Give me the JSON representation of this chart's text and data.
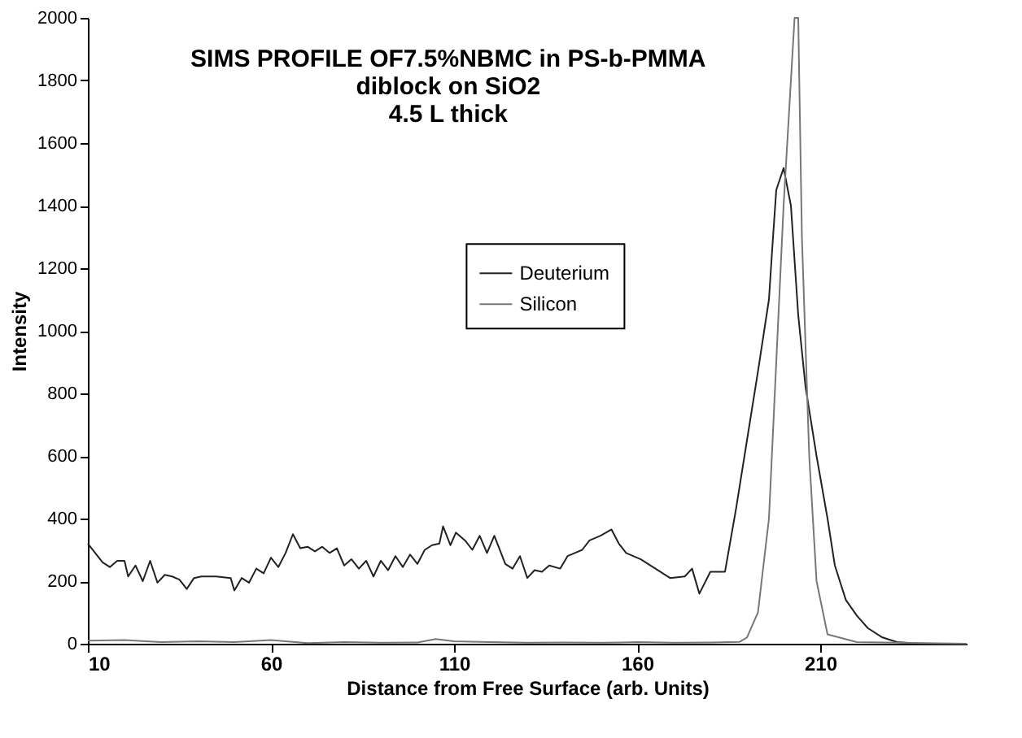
{
  "chart_data": {
    "type": "line",
    "title": "SIMS PROFILE OF7.5%NBMC in PS-b-PMMA\ndiblock on SiO2\n4.5 L thick",
    "xlabel": "Distance from Free Surface (arb. Units)",
    "ylabel": "Intensity",
    "xlim": [
      10,
      250
    ],
    "xticks": [
      10,
      60,
      110,
      160,
      210
    ],
    "ylim": [
      0,
      2000
    ],
    "yticks": [
      0,
      200,
      400,
      600,
      800,
      1000,
      1200,
      1400,
      1600,
      1800,
      2000
    ],
    "grid": false,
    "legend": "center",
    "line_style": "solid",
    "series": [
      {
        "name": "Deuterium",
        "color": "#222222",
        "x": [
          10,
          12,
          14,
          16,
          18,
          20,
          21,
          23,
          25,
          27,
          29,
          31,
          33,
          35,
          37,
          39,
          41,
          45,
          49,
          50,
          52,
          54,
          56,
          58,
          60,
          62,
          64,
          66,
          68,
          70,
          72,
          74,
          76,
          78,
          80,
          82,
          84,
          86,
          88,
          90,
          92,
          94,
          96,
          98,
          100,
          102,
          104,
          106,
          107,
          109,
          110.5,
          113,
          115,
          117,
          119,
          121,
          124,
          126,
          128,
          130,
          132,
          134,
          136,
          139,
          141,
          143,
          145,
          147,
          150,
          153,
          155,
          157,
          161,
          165,
          169,
          173,
          175,
          177,
          180,
          184,
          187,
          190,
          193,
          196,
          197,
          198,
          200,
          202,
          204,
          206,
          209,
          212,
          214,
          217,
          220,
          223,
          227,
          231,
          237,
          250
        ],
        "values": [
          320,
          290,
          260,
          245,
          265,
          265,
          215,
          250,
          200,
          265,
          195,
          220,
          215,
          205,
          175,
          210,
          215,
          215,
          210,
          170,
          210,
          195,
          240,
          225,
          275,
          245,
          290,
          350,
          305,
          310,
          295,
          310,
          290,
          305,
          250,
          270,
          240,
          265,
          215,
          265,
          235,
          280,
          245,
          285,
          255,
          300,
          315,
          320,
          375,
          315,
          355,
          330,
          300,
          345,
          290,
          345,
          255,
          240,
          280,
          210,
          235,
          230,
          250,
          240,
          280,
          290,
          300,
          330,
          345,
          365,
          320,
          290,
          270,
          240,
          210,
          215,
          240,
          160,
          230,
          230,
          430,
          650,
          870,
          1100,
          1280,
          1450,
          1520,
          1400,
          1050,
          820,
          600,
          400,
          250,
          140,
          90,
          50,
          20,
          5,
          0,
          0
        ]
      },
      {
        "name": "Silicon",
        "color": "#777777",
        "x": [
          10,
          20,
          30,
          40,
          50,
          60,
          70,
          80,
          90,
          100,
          105,
          110,
          120,
          130,
          140,
          150,
          160,
          170,
          180,
          188,
          190,
          193,
          196,
          198,
          200,
          202,
          203,
          204,
          205,
          207,
          209,
          212,
          220,
          250
        ],
        "values": [
          10,
          12,
          5,
          8,
          5,
          12,
          2,
          5,
          3,
          4,
          15,
          8,
          5,
          3,
          4,
          3,
          5,
          3,
          4,
          6,
          20,
          100,
          400,
          900,
          1400,
          1800,
          2000,
          2000,
          1300,
          600,
          200,
          30,
          5,
          0
        ]
      }
    ]
  }
}
